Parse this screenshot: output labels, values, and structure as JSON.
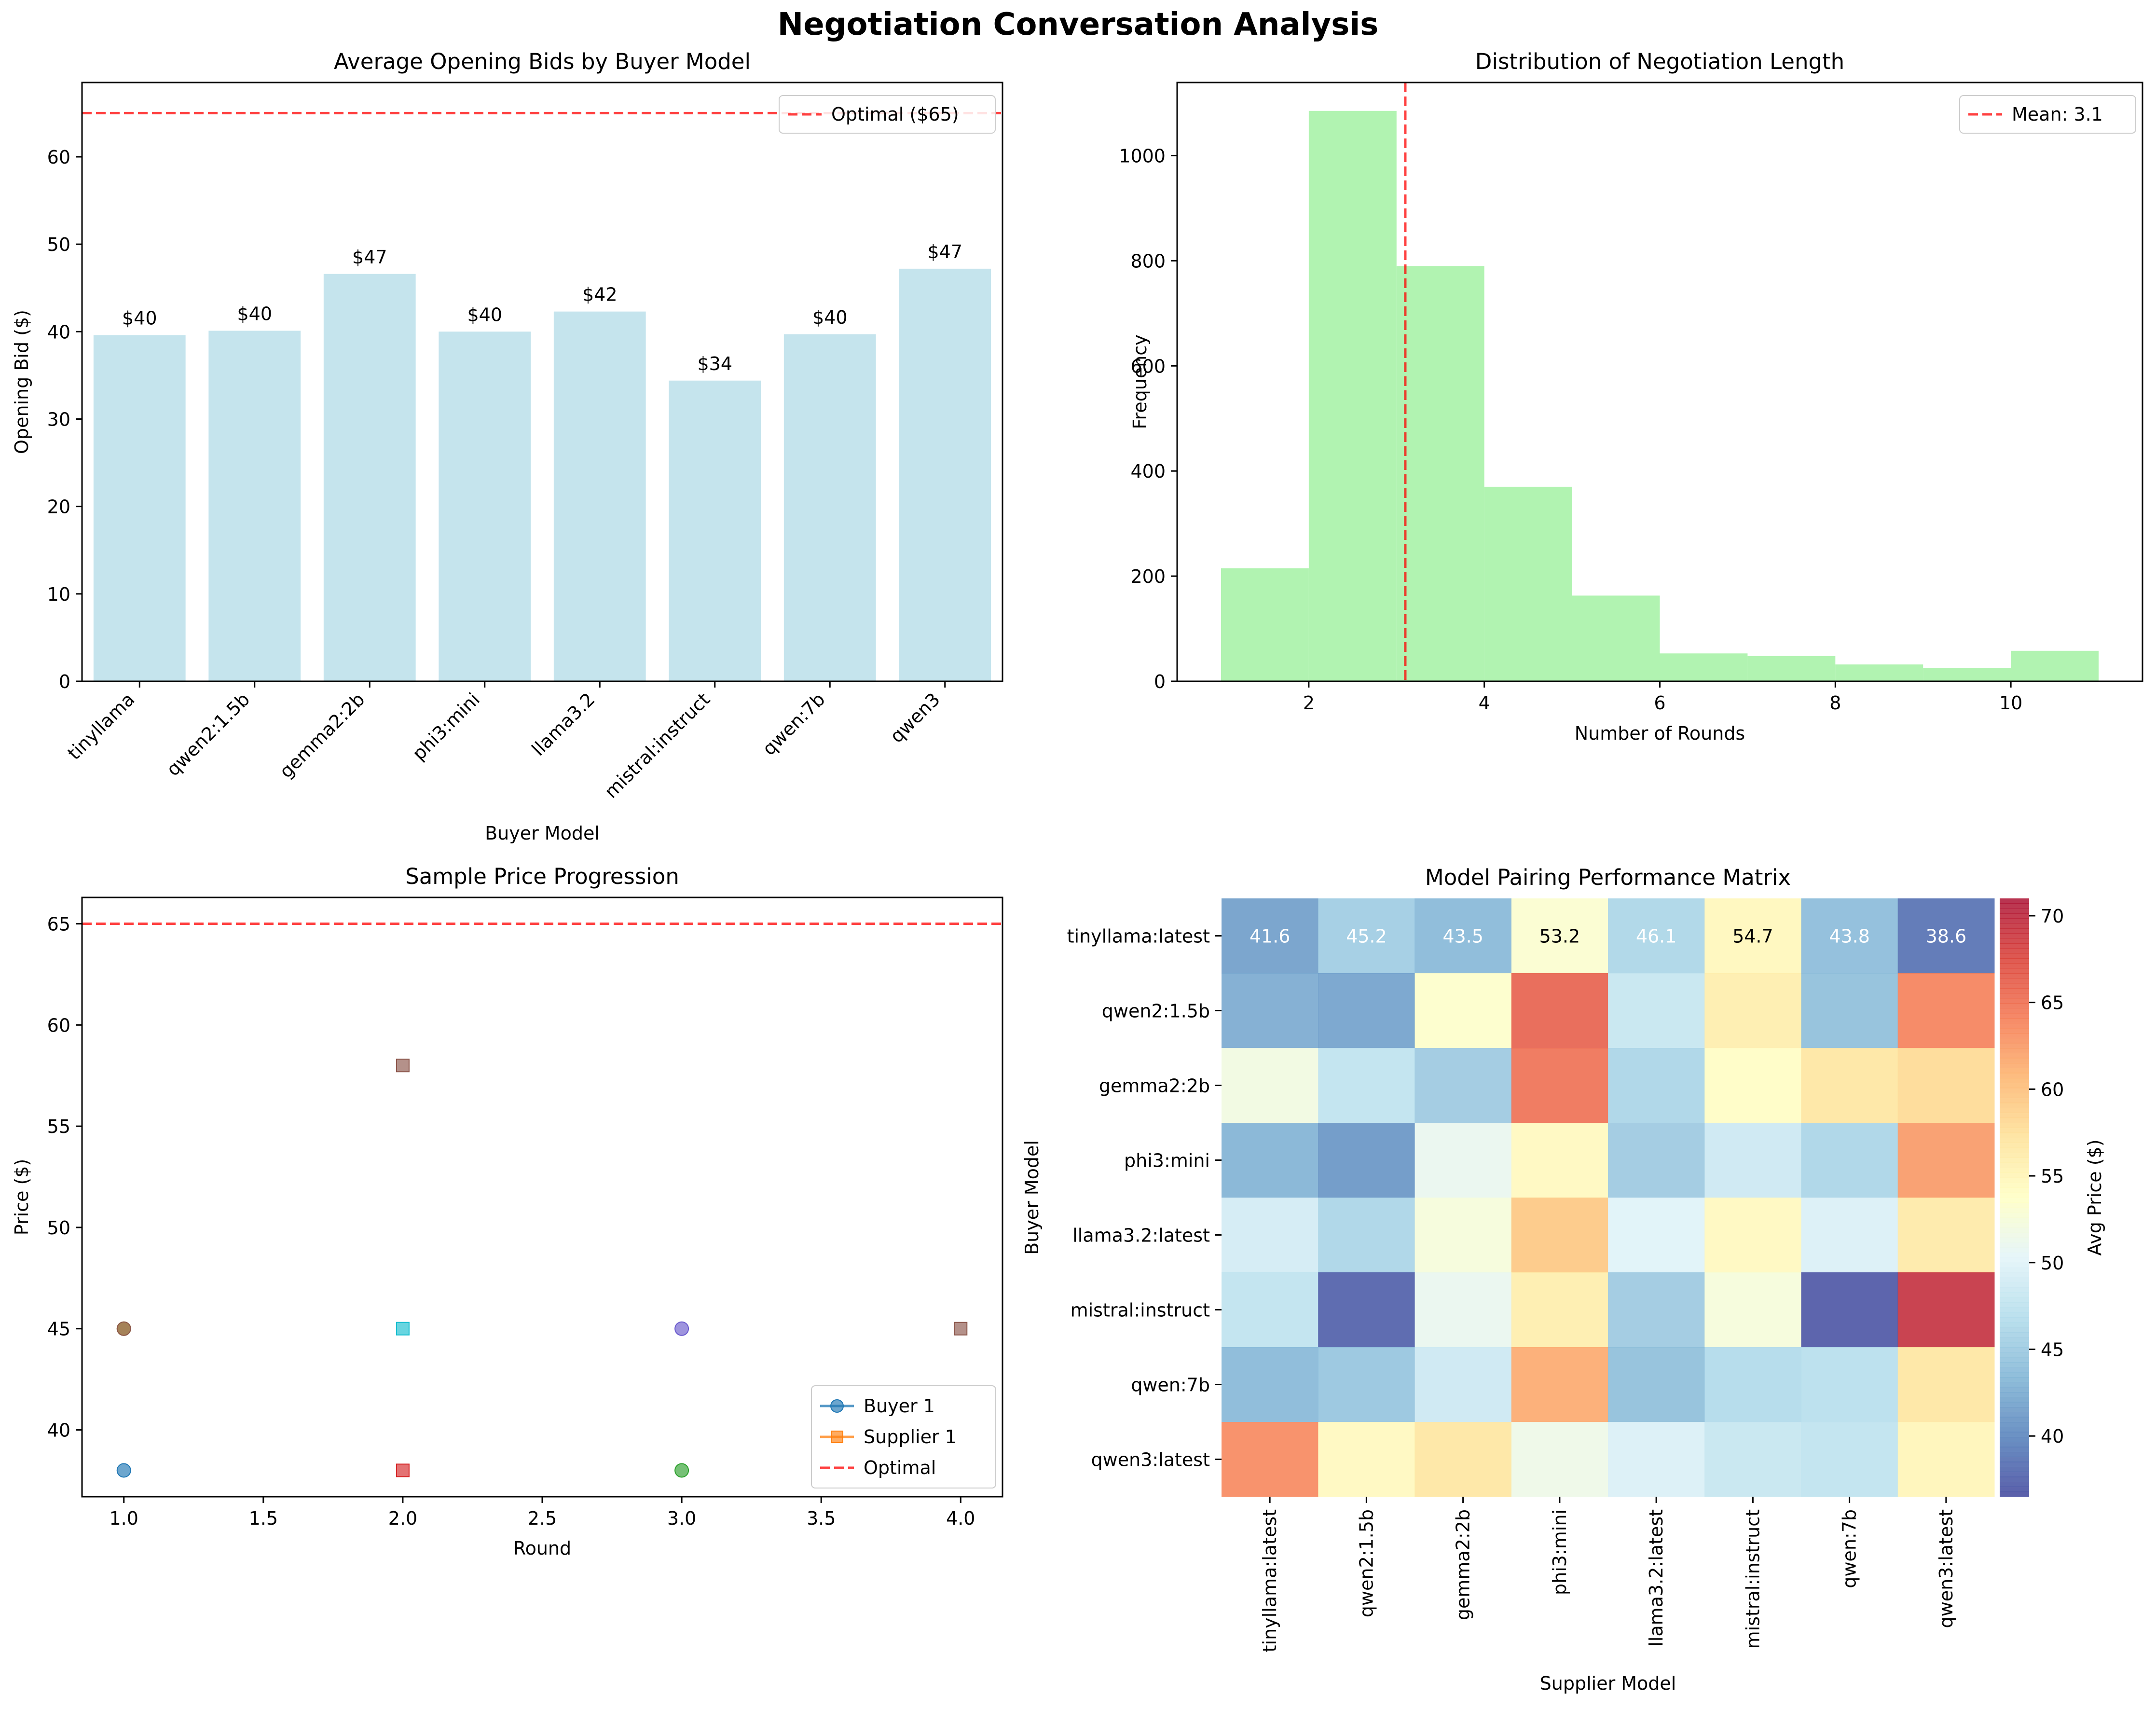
{
  "figure": {
    "suptitle": "Negotiation Conversation Analysis"
  },
  "chart_data": [
    {
      "id": "opening_bids",
      "type": "bar",
      "title": "Average Opening Bids by Buyer Model",
      "xlabel": "Buyer Model",
      "ylabel": "Opening Bid ($)",
      "categories": [
        "tinyllama",
        "qwen2:1.5b",
        "gemma2:2b",
        "phi3:mini",
        "llama3.2",
        "mistral:instruct",
        "qwen:7b",
        "qwen3"
      ],
      "values": [
        39.6,
        40.1,
        46.6,
        40.0,
        42.3,
        34.4,
        39.7,
        47.2
      ],
      "value_labels": [
        "$40",
        "$40",
        "$47",
        "$40",
        "$42",
        "$34",
        "$40",
        "$47"
      ],
      "ylim": [
        0,
        68.5
      ],
      "yticks": [
        0,
        10,
        20,
        30,
        40,
        50,
        60
      ],
      "reference_line": {
        "y": 65,
        "label": "Optimal ($65)",
        "color": "#ff0000"
      },
      "bar_color": "#add8e6",
      "legend_position": "upper right",
      "grid": false
    },
    {
      "id": "negotiation_length",
      "type": "histogram",
      "title": "Distribution of Negotiation Length",
      "xlabel": "Number of Rounds",
      "ylabel": "Frequency",
      "bins": [
        [
          1,
          2
        ],
        [
          2,
          3
        ],
        [
          3,
          4
        ],
        [
          4,
          5
        ],
        [
          5,
          6
        ],
        [
          6,
          7
        ],
        [
          7,
          8
        ],
        [
          8,
          9
        ],
        [
          9,
          10
        ],
        [
          10,
          11
        ]
      ],
      "values": [
        215,
        1085,
        790,
        370,
        163,
        53,
        48,
        32,
        25,
        58
      ],
      "xlim": [
        0.5,
        11.5
      ],
      "ylim": [
        0,
        1139
      ],
      "xticks": [
        2,
        4,
        6,
        8,
        10
      ],
      "yticks": [
        0,
        200,
        400,
        600,
        800,
        1000
      ],
      "reference_line": {
        "x": 3.1,
        "label": "Mean: 3.1",
        "color": "#ff0000"
      },
      "bar_color": "#90ee90",
      "legend_position": "upper right",
      "grid": false
    },
    {
      "id": "price_progression",
      "type": "scatter",
      "title": "Sample Price Progression",
      "xlabel": "Round",
      "ylabel": "Price ($)",
      "xlim": [
        0.85,
        4.15
      ],
      "ylim": [
        36.7,
        66.3
      ],
      "xticks": [
        "1.0",
        "1.5",
        "2.0",
        "2.5",
        "3.0",
        "3.5",
        "4.0"
      ],
      "yticks": [
        40,
        45,
        50,
        55,
        60,
        65
      ],
      "points": [
        {
          "x": 1,
          "y": 38,
          "marker": "circle",
          "color": "#1f77b4"
        },
        {
          "x": 1,
          "y": 45,
          "marker": "circle",
          "color": "#bcbd22"
        },
        {
          "x": 1,
          "y": 45,
          "marker": "circle",
          "color": "#8c564b"
        },
        {
          "x": 2,
          "y": 58,
          "marker": "square",
          "color": "#8c564b"
        },
        {
          "x": 2,
          "y": 45,
          "marker": "square",
          "color": "#17becf"
        },
        {
          "x": 2,
          "y": 38,
          "marker": "square",
          "color": "#d62728"
        },
        {
          "x": 3,
          "y": 45,
          "marker": "circle",
          "color": "#6a5acd"
        },
        {
          "x": 3,
          "y": 38,
          "marker": "circle",
          "color": "#2ca02c"
        },
        {
          "x": 4,
          "y": 45,
          "marker": "square",
          "color": "#8c564b"
        }
      ],
      "reference_line": {
        "y": 65,
        "label": "Optimal",
        "color": "#ff0000"
      },
      "legend": [
        {
          "label": "Buyer 1",
          "marker": "circle",
          "color": "#1f77b4"
        },
        {
          "label": "Supplier 1",
          "marker": "square",
          "color": "#ff7f0e"
        },
        {
          "label": "Optimal",
          "marker": "dashed",
          "color": "#ff0000"
        }
      ],
      "legend_position": "lower right",
      "grid": false
    },
    {
      "id": "pairing_matrix",
      "type": "heatmap",
      "title": "Model Pairing Performance Matrix",
      "xlabel": "Supplier Model",
      "ylabel": "Buyer Model",
      "rows": [
        "tinyllama:latest",
        "qwen2:1.5b",
        "gemma2:2b",
        "phi3:mini",
        "llama3.2:latest",
        "mistral:instruct",
        "qwen:7b",
        "qwen3:latest"
      ],
      "cols": [
        "tinyllama:latest",
        "qwen2:1.5b",
        "gemma2:2b",
        "phi3:mini",
        "llama3.2:latest",
        "mistral:instruct",
        "qwen:7b",
        "qwen3:latest"
      ],
      "values": [
        [
          41.6,
          45.2,
          43.5,
          53.2,
          46.1,
          54.7,
          43.8,
          38.6
        ],
        [
          42.5,
          41.8,
          53.5,
          66.0,
          48.0,
          56.0,
          44.0,
          64.0
        ],
        [
          52.0,
          47.5,
          45.0,
          65.0,
          46.0,
          54.0,
          57.0,
          58.0
        ],
        [
          43.0,
          41.0,
          51.0,
          54.5,
          45.0,
          48.5,
          46.0,
          62.5
        ],
        [
          49.0,
          46.0,
          52.5,
          59.5,
          50.0,
          54.5,
          49.5,
          56.5
        ],
        [
          47.5,
          37.5,
          51.0,
          56.0,
          45.0,
          52.5,
          37.0,
          69.5
        ],
        [
          43.5,
          44.5,
          48.5,
          61.5,
          44.0,
          46.5,
          47.0,
          57.0
        ],
        [
          63.5,
          54.5,
          57.0,
          51.5,
          49.5,
          48.0,
          47.5,
          55.0
        ]
      ],
      "annotated_rows": [
        0
      ],
      "colorbar": {
        "label": "Avg Price ($)",
        "min": 36.5,
        "max": 71,
        "ticks": [
          40,
          45,
          50,
          55,
          60,
          65,
          70
        ],
        "colormap": "RdYlBu_r"
      }
    }
  ]
}
